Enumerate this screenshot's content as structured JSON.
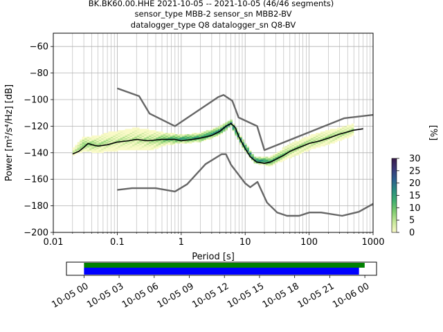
{
  "chart_data": [
    {
      "type": "heatmap",
      "title_lines": [
        "BK.BK60.00.HHE   2021-10-05 -- 2021-10-05  (46/46 segments)",
        "sensor_type MBB-2 sensor_sn MBB2-BV",
        "datalogger_type Q8 datalogger_sn Q8-BV"
      ],
      "xlabel": "Period [s]",
      "ylabel": "Power [m²/s⁴/Hz] [dB]",
      "xscale": "log",
      "xlim": [
        0.01,
        1000
      ],
      "ylim": [
        -200,
        -50
      ],
      "x_ticks": [
        0.01,
        0.1,
        1,
        10,
        100,
        1000
      ],
      "x_tick_labels": [
        "0.01",
        "0.1",
        "1",
        "10",
        "100",
        "1000"
      ],
      "y_ticks": [
        -200,
        -180,
        -160,
        -140,
        -120,
        -100,
        -80,
        -60
      ],
      "y_tick_labels": [
        "−200",
        "−180",
        "−160",
        "−140",
        "−120",
        "−100",
        "−80",
        "−60"
      ],
      "grid": true,
      "colorbar": {
        "label": "[%]",
        "range": [
          0,
          30
        ],
        "ticks": [
          0,
          5,
          10,
          15,
          20,
          25,
          30
        ],
        "tick_labels": [
          "0",
          "5",
          "10",
          "15",
          "20",
          "25",
          "30"
        ],
        "colors": [
          "#fafac8",
          "#c6e89a",
          "#7fcc70",
          "#3fae70",
          "#2a8c80",
          "#2c5f8e",
          "#3a3877",
          "#3a1a4a"
        ]
      },
      "series": [
        {
          "role": "noise-model-high",
          "color": "#666666",
          "x": [
            0.1,
            0.22,
            0.32,
            0.8,
            3.8,
            4.6,
            6.3,
            7.9,
            15.4,
            20,
            354.8,
            1000
          ],
          "y": [
            -91.5,
            -97.4,
            -110.5,
            -120.0,
            -98.0,
            -96.5,
            -101.0,
            -113.5,
            -120.0,
            -138.0,
            -114.0,
            -111.5
          ]
        },
        {
          "role": "noise-model-low",
          "color": "#666666",
          "x": [
            0.1,
            0.17,
            0.4,
            0.8,
            1.24,
            2.4,
            4.3,
            5.0,
            6.0,
            10.0,
            12.0,
            15.6,
            21.9,
            31.6,
            45.0,
            70.0,
            101.0,
            154.0,
            328.0,
            600.0,
            1000.0
          ],
          "y": [
            -168.0,
            -166.7,
            -166.7,
            -169.2,
            -163.7,
            -148.6,
            -141.1,
            -141.1,
            -149.0,
            -163.0,
            -166.0,
            -162.0,
            -177.5,
            -185.0,
            -187.5,
            -187.5,
            -185.0,
            -185.0,
            -187.5,
            -184.5,
            -178.5
          ]
        },
        {
          "role": "mode",
          "color": "#000000",
          "x": [
            0.02,
            0.025,
            0.03,
            0.035,
            0.04,
            0.05,
            0.07,
            0.1,
            0.15,
            0.2,
            0.3,
            0.5,
            0.8,
            1.0,
            1.5,
            2.0,
            3.0,
            4.0,
            5.0,
            6.0,
            7.0,
            8.0,
            10.0,
            12.0,
            15.0,
            20.0,
            25.0,
            30.0,
            40.0,
            50.0,
            70.0,
            100.0,
            150.0,
            200.0,
            300.0,
            500.0,
            700.0
          ],
          "y": [
            -141,
            -139,
            -136,
            -133,
            -134,
            -135,
            -134,
            -132,
            -131,
            -130,
            -131,
            -130,
            -130,
            -131,
            -130,
            -129,
            -127,
            -124,
            -120,
            -118,
            -121,
            -128,
            -137,
            -143,
            -147,
            -148,
            -147,
            -145,
            -142,
            -139,
            -136,
            -133,
            -131,
            -129,
            -126,
            -123,
            -122
          ]
        }
      ],
      "density_summary": [
        {
          "x": 0.02,
          "y": -140,
          "spread": 2,
          "level": 0.3
        },
        {
          "x": 0.03,
          "y": -134,
          "spread": 5,
          "level": 0.5
        },
        {
          "x": 0.05,
          "y": -134,
          "spread": 6,
          "level": 0.4
        },
        {
          "x": 0.08,
          "y": -132,
          "spread": 7,
          "level": 0.35
        },
        {
          "x": 0.12,
          "y": -131,
          "spread": 7,
          "level": 0.35
        },
        {
          "x": 0.2,
          "y": -130,
          "spread": 8,
          "level": 0.35
        },
        {
          "x": 0.35,
          "y": -131,
          "spread": 7,
          "level": 0.4
        },
        {
          "x": 0.6,
          "y": -130,
          "spread": 4,
          "level": 0.6
        },
        {
          "x": 1.0,
          "y": -130,
          "spread": 3,
          "level": 0.7
        },
        {
          "x": 2.0,
          "y": -129,
          "spread": 3,
          "level": 0.7
        },
        {
          "x": 4.0,
          "y": -124,
          "spread": 3,
          "level": 0.8
        },
        {
          "x": 6.0,
          "y": -118,
          "spread": 2,
          "level": 0.9
        },
        {
          "x": 9.0,
          "y": -133,
          "spread": 3,
          "level": 0.8
        },
        {
          "x": 14.0,
          "y": -146,
          "spread": 2,
          "level": 0.85
        },
        {
          "x": 25.0,
          "y": -147,
          "spread": 3,
          "level": 0.7
        },
        {
          "x": 50.0,
          "y": -139,
          "spread": 5,
          "level": 0.45
        },
        {
          "x": 100.0,
          "y": -133,
          "spread": 5,
          "level": 0.4
        },
        {
          "x": 200.0,
          "y": -129,
          "spread": 5,
          "level": 0.4
        },
        {
          "x": 500.0,
          "y": -123,
          "spread": 4,
          "level": 0.4
        }
      ]
    },
    {
      "type": "bar",
      "role": "data-coverage",
      "x_tick_labels": [
        "10-05 00",
        "10-05 03",
        "10-05 06",
        "10-05 09",
        "10-05 12",
        "10-05 15",
        "10-05 18",
        "10-05 21",
        "10-06 00"
      ],
      "xlim": [
        "2021-10-04 22:30",
        "2021-10-06 01:00"
      ],
      "bars": [
        {
          "name": "",
          "color": "#008000",
          "start": "2021-10-05 00:00",
          "end": "2021-10-05 23:59"
        },
        {
          "name": "",
          "color": "#0000ff",
          "start": "2021-10-05 00:00",
          "end": "2021-10-05 23:30"
        }
      ]
    }
  ]
}
